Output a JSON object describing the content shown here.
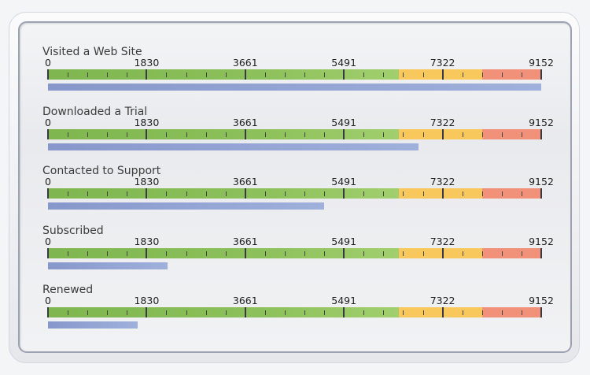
{
  "chart_data": {
    "type": "linear-gauge",
    "scale": {
      "min": 0,
      "max": 9152,
      "tick_labels": [
        "0",
        "1830",
        "3661",
        "5491",
        "7322",
        "9152"
      ],
      "minor_ticks_per_interval": 4
    },
    "ranges": [
      {
        "from": 0,
        "to": 6510,
        "color": "#8cc05a"
      },
      {
        "from": 6510,
        "to": 8057,
        "color": "#f8c85c"
      },
      {
        "from": 8057,
        "to": 9152,
        "color": "#f2917a"
      }
    ],
    "bar_color": "#8f9fd0",
    "gauges": [
      {
        "title": "Visited a Web Site",
        "value": 9152
      },
      {
        "title": "Downloaded a Trial",
        "value": 6875
      },
      {
        "title": "Contacted to Support",
        "value": 5123
      },
      {
        "title": "Subscribed",
        "value": 2219
      },
      {
        "title": "Renewed",
        "value": 1664
      }
    ]
  }
}
